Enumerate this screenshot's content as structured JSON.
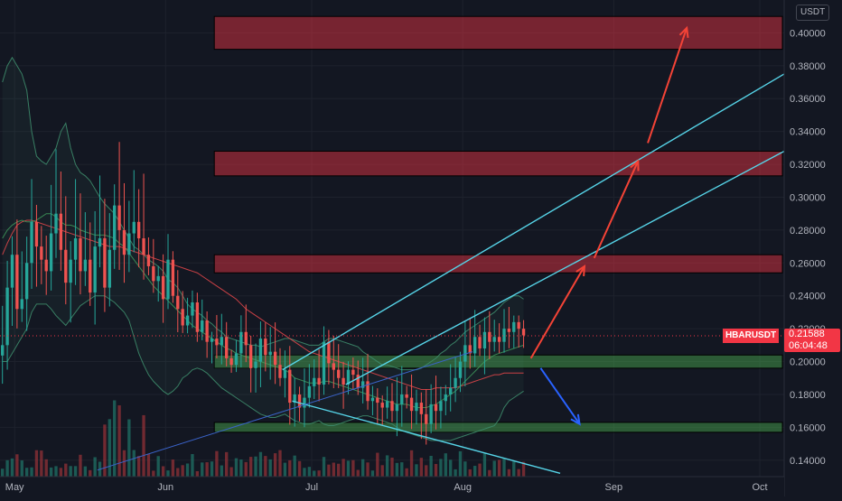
{
  "currency_badge": "USDT",
  "symbol_label": "HBARUSDT",
  "current_price_label": "0.21588",
  "countdown": "06:04:48",
  "colors": {
    "background": "#131722",
    "bull": "#26a69a",
    "bear": "#ef5350",
    "resistance_zone": "#f23645",
    "support_zone": "#4caf50",
    "channel": "#56d4e8",
    "projection_up": "#f44336",
    "projection_down": "#2962ff",
    "bollinger": "#3d8a6a",
    "ma_slow": "#e8484b",
    "ma_fast": "#3f9b5c",
    "volume_up": "#1f6b61",
    "volume_down": "#8a3036"
  },
  "chart_data": {
    "type": "candlestick",
    "symbol": "HBARUSDT",
    "quote_currency": "USDT",
    "y_axis": {
      "position": "right",
      "range": [
        0.13,
        0.42
      ],
      "ticks": [
        "0.14000",
        "0.16000",
        "0.18000",
        "0.20000",
        "0.22000",
        "0.24000",
        "0.26000",
        "0.28000",
        "0.30000",
        "0.32000",
        "0.34000",
        "0.36000",
        "0.38000",
        "0.40000"
      ]
    },
    "x_axis": {
      "range_days": [
        0,
        161
      ],
      "ticks": [
        {
          "label": "May",
          "day": 3
        },
        {
          "label": "Jun",
          "day": 34
        },
        {
          "label": "Jul",
          "day": 64
        },
        {
          "label": "Aug",
          "day": 95
        },
        {
          "label": "Sep",
          "day": 126
        },
        {
          "label": "Oct",
          "day": 156
        }
      ]
    },
    "candle_start_day": 0,
    "closes": [
      0.21,
      0.245,
      0.265,
      0.232,
      0.238,
      0.26,
      0.285,
      0.27,
      0.262,
      0.255,
      0.278,
      0.29,
      0.268,
      0.248,
      0.262,
      0.275,
      0.255,
      0.262,
      0.242,
      0.27,
      0.275,
      0.245,
      0.268,
      0.295,
      0.28,
      0.265,
      0.278,
      0.285,
      0.275,
      0.265,
      0.258,
      0.249,
      0.252,
      0.238,
      0.262,
      0.24,
      0.232,
      0.222,
      0.228,
      0.236,
      0.218,
      0.225,
      0.212,
      0.214,
      0.21,
      0.215,
      0.202,
      0.198,
      0.205,
      0.218,
      0.21,
      0.196,
      0.2,
      0.214,
      0.204,
      0.206,
      0.198,
      0.19,
      0.195,
      0.175,
      0.18,
      0.172,
      0.178,
      0.185,
      0.19,
      0.186,
      0.212,
      0.199,
      0.195,
      0.19,
      0.186,
      0.195,
      0.192,
      0.184,
      0.188,
      0.176,
      0.178,
      0.175,
      0.172,
      0.176,
      0.17,
      0.174,
      0.18,
      0.178,
      0.17,
      0.175,
      0.168,
      0.162,
      0.174,
      0.17,
      0.176,
      0.18,
      0.184,
      0.19,
      0.2,
      0.21,
      0.205,
      0.215,
      0.208,
      0.218,
      0.212,
      0.215,
      0.212,
      0.22,
      0.218,
      0.224,
      0.22,
      0.216
    ],
    "bollinger_upper": [
      0.37,
      0.38,
      0.385,
      0.38,
      0.375,
      0.365,
      0.34,
      0.325,
      0.322,
      0.32,
      0.325,
      0.33,
      0.34,
      0.345,
      0.33,
      0.32,
      0.315,
      0.313,
      0.31,
      0.305,
      0.3,
      0.296,
      0.293,
      0.29,
      0.285,
      0.28,
      0.275,
      0.27,
      0.268,
      0.265,
      0.262,
      0.26,
      0.258,
      0.255,
      0.25,
      0.248,
      0.245,
      0.24,
      0.235,
      0.232,
      0.23,
      0.228,
      0.225,
      0.223,
      0.22,
      0.218,
      0.215,
      0.214,
      0.213,
      0.212,
      0.211,
      0.21,
      0.21,
      0.209,
      0.21,
      0.211,
      0.212,
      0.213,
      0.214,
      0.214,
      0.213,
      0.212,
      0.211,
      0.21,
      0.21,
      0.21,
      0.212,
      0.214,
      0.214,
      0.213,
      0.212,
      0.211,
      0.21,
      0.209,
      0.206,
      0.204,
      0.202,
      0.2,
      0.198,
      0.198,
      0.197,
      0.196,
      0.195,
      0.195,
      0.195,
      0.195,
      0.196,
      0.198,
      0.2,
      0.202,
      0.205,
      0.207,
      0.21,
      0.212,
      0.215,
      0.218,
      0.22,
      0.222,
      0.224,
      0.226,
      0.228,
      0.23,
      0.233,
      0.236,
      0.238,
      0.24,
      0.24,
      0.238
    ],
    "bollinger_lower": [
      0.2,
      0.2,
      0.205,
      0.21,
      0.215,
      0.22,
      0.23,
      0.235,
      0.235,
      0.235,
      0.232,
      0.228,
      0.225,
      0.222,
      0.226,
      0.23,
      0.234,
      0.236,
      0.238,
      0.24,
      0.24,
      0.24,
      0.238,
      0.236,
      0.233,
      0.23,
      0.225,
      0.215,
      0.205,
      0.198,
      0.192,
      0.188,
      0.185,
      0.182,
      0.18,
      0.182,
      0.185,
      0.19,
      0.192,
      0.195,
      0.196,
      0.195,
      0.193,
      0.19,
      0.187,
      0.184,
      0.182,
      0.18,
      0.178,
      0.176,
      0.174,
      0.172,
      0.17,
      0.168,
      0.167,
      0.166,
      0.166,
      0.167,
      0.168,
      0.166,
      0.164,
      0.163,
      0.162,
      0.162,
      0.163,
      0.164,
      0.162,
      0.161,
      0.161,
      0.162,
      0.163,
      0.164,
      0.165,
      0.166,
      0.167,
      0.167,
      0.166,
      0.165,
      0.164,
      0.163,
      0.162,
      0.16,
      0.158,
      0.157,
      0.156,
      0.155,
      0.154,
      0.153,
      0.152,
      0.152,
      0.152,
      0.152,
      0.152,
      0.153,
      0.154,
      0.155,
      0.156,
      0.157,
      0.158,
      0.159,
      0.16,
      0.161,
      0.165,
      0.172,
      0.176,
      0.178,
      0.18,
      0.182
    ],
    "ma_slow": [
      0.265,
      0.272,
      0.278,
      0.283,
      0.285,
      0.286,
      0.286,
      0.285,
      0.284,
      0.283,
      0.282,
      0.281,
      0.28,
      0.279,
      0.278,
      0.277,
      0.276,
      0.275,
      0.274,
      0.273,
      0.272,
      0.271,
      0.27,
      0.27,
      0.27,
      0.269,
      0.268,
      0.267,
      0.266,
      0.265,
      0.264,
      0.263,
      0.262,
      0.261,
      0.26,
      0.259,
      0.258,
      0.257,
      0.256,
      0.255,
      0.254,
      0.252,
      0.25,
      0.248,
      0.246,
      0.244,
      0.242,
      0.24,
      0.238,
      0.235,
      0.232,
      0.23,
      0.228,
      0.226,
      0.224,
      0.222,
      0.22,
      0.218,
      0.216,
      0.214,
      0.212,
      0.21,
      0.208,
      0.206,
      0.205,
      0.204,
      0.203,
      0.202,
      0.201,
      0.2,
      0.199,
      0.198,
      0.197,
      0.196,
      0.195,
      0.194,
      0.193,
      0.192,
      0.191,
      0.19,
      0.189,
      0.188,
      0.187,
      0.186,
      0.185,
      0.184,
      0.183,
      0.183,
      0.183,
      0.184,
      0.184,
      0.184,
      0.184,
      0.184,
      0.185,
      0.186,
      0.187,
      0.188,
      0.189,
      0.19,
      0.191,
      0.192,
      0.192,
      0.193,
      0.193,
      0.193,
      0.193,
      0.193
    ],
    "ma_fast": [
      0.275,
      0.28,
      0.283,
      0.285,
      0.286,
      0.285,
      0.285,
      0.286,
      0.288,
      0.29,
      0.29,
      0.288,
      0.285,
      0.283,
      0.283,
      0.282,
      0.28,
      0.279,
      0.278,
      0.277,
      0.277,
      0.277,
      0.276,
      0.275,
      0.272,
      0.27,
      0.266,
      0.262,
      0.258,
      0.254,
      0.25,
      0.246,
      0.243,
      0.24,
      0.237,
      0.234,
      0.231,
      0.228,
      0.225,
      0.222,
      0.22,
      0.218,
      0.216,
      0.214,
      0.212,
      0.21,
      0.208,
      0.207,
      0.205,
      0.204,
      0.203,
      0.202,
      0.201,
      0.2,
      0.199,
      0.198,
      0.197,
      0.196,
      0.195,
      0.193,
      0.19,
      0.189,
      0.188,
      0.187,
      0.187,
      0.187,
      0.188,
      0.188,
      0.187,
      0.186,
      0.185,
      0.184,
      0.183,
      0.182,
      0.181,
      0.18,
      0.179,
      0.178,
      0.177,
      0.176,
      0.175,
      0.174,
      0.174,
      0.174,
      0.173,
      0.172,
      0.172,
      0.172,
      0.173,
      0.174,
      0.176,
      0.178,
      0.18,
      0.182,
      0.185,
      0.188,
      0.191,
      0.194,
      0.197,
      0.2,
      0.202,
      0.204,
      0.205,
      0.206,
      0.207,
      0.208,
      0.209,
      0.21
    ],
    "resistance_zones": [
      [
        0.39,
        0.41
      ],
      [
        0.313,
        0.328
      ],
      [
        0.254,
        0.265
      ]
    ],
    "support_zones": [
      [
        0.196,
        0.204
      ],
      [
        0.157,
        0.163
      ]
    ],
    "channel_lines": [
      {
        "from": [
          58,
          0.195
        ],
        "to": [
          161,
          0.375
        ]
      },
      {
        "from": [
          71,
          0.186
        ],
        "to": [
          161,
          0.328
        ]
      },
      {
        "from": [
          60,
          0.176
        ],
        "to": [
          115,
          0.132
        ]
      },
      {
        "from": [
          20,
          0.134
        ],
        "to": [
          97,
          0.206
        ]
      }
    ],
    "projection_arrows": [
      {
        "direction": "up",
        "from": [
          109,
          0.202
        ],
        "to": [
          120,
          0.258
        ]
      },
      {
        "direction": "up",
        "from": [
          122,
          0.263
        ],
        "to": [
          131,
          0.322
        ]
      },
      {
        "direction": "up",
        "from": [
          133,
          0.333
        ],
        "to": [
          141,
          0.403
        ]
      },
      {
        "direction": "down",
        "from": [
          111,
          0.196
        ],
        "to": [
          119,
          0.162
        ]
      }
    ]
  }
}
